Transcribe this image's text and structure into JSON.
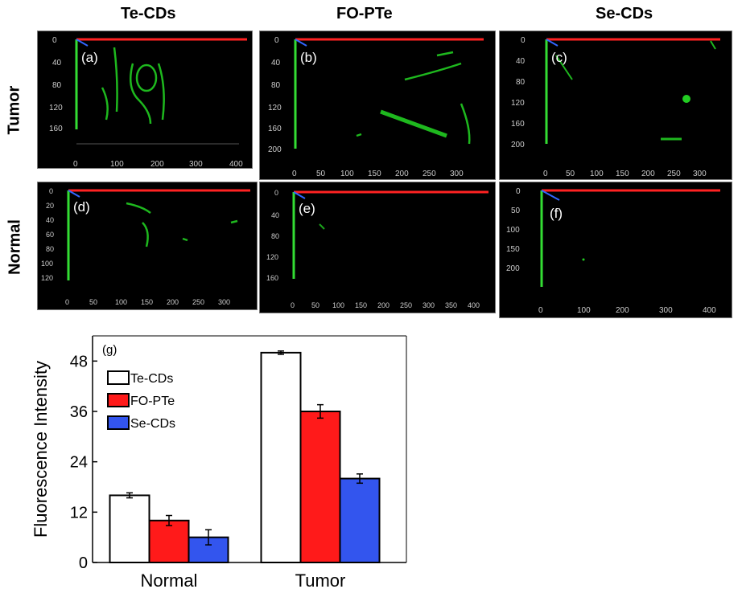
{
  "figure": {
    "column_titles": [
      "Te-CDs",
      "FO-PTe",
      "Se-CDs"
    ],
    "row_titles": [
      "Tumor",
      "Normal"
    ]
  },
  "panels": [
    {
      "label": "(a)",
      "x_ticks": [
        "0",
        "100",
        "200",
        "300",
        "400"
      ],
      "y_ticks": [
        "0",
        "40",
        "80",
        "120",
        "160"
      ]
    },
    {
      "label": "(b)",
      "x_ticks": [
        "0",
        "50",
        "100",
        "150",
        "200",
        "250",
        "300"
      ],
      "y_ticks": [
        "0",
        "40",
        "80",
        "120",
        "160",
        "200"
      ]
    },
    {
      "label": "(c)",
      "x_ticks": [
        "0",
        "50",
        "100",
        "150",
        "200",
        "250",
        "300"
      ],
      "y_ticks": [
        "0",
        "40",
        "80",
        "120",
        "160",
        "200"
      ]
    },
    {
      "label": "(d)",
      "x_ticks": [
        "0",
        "50",
        "100",
        "150",
        "200",
        "250",
        "300"
      ],
      "y_ticks": [
        "0",
        "20",
        "40",
        "60",
        "80",
        "100",
        "120"
      ]
    },
    {
      "label": "(e)",
      "x_ticks": [
        "0",
        "50",
        "100",
        "150",
        "200",
        "250",
        "300",
        "350",
        "400"
      ],
      "y_ticks": [
        "0",
        "40",
        "80",
        "120",
        "160"
      ]
    },
    {
      "label": "(f)",
      "x_ticks": [
        "0",
        "100",
        "200",
        "300",
        "400"
      ],
      "y_ticks": [
        "0",
        "50",
        "100",
        "150",
        "200"
      ]
    }
  ],
  "chart_data": {
    "type": "bar",
    "panel_label": "(g)",
    "categories": [
      "Normal",
      "Tumor"
    ],
    "series": [
      {
        "name": "Te-CDs",
        "values": [
          16,
          50
        ],
        "errors": [
          0.6,
          0.4
        ],
        "color": "#ffffff"
      },
      {
        "name": "FO-PTe",
        "values": [
          10,
          36
        ],
        "errors": [
          1.2,
          1.6
        ],
        "color": "#ff1a1a"
      },
      {
        "name": "Se-CDs",
        "values": [
          6,
          20
        ],
        "errors": [
          1.8,
          1.1
        ],
        "color": "#3355ee"
      }
    ],
    "xlabel": "",
    "ylabel": "Fluorescence Intensity",
    "ylim": [
      0,
      54
    ],
    "yticks": [
      "0",
      "12",
      "24",
      "36",
      "48"
    ],
    "legend_position": "top-left",
    "grid": false
  }
}
